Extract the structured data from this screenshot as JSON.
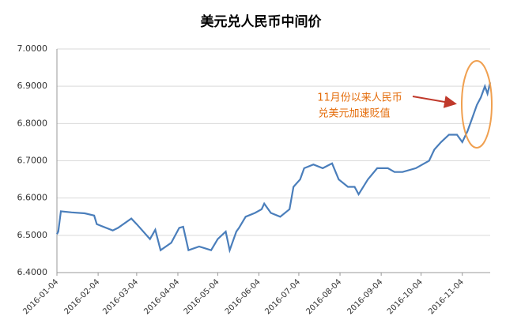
{
  "chart_data": {
    "type": "line",
    "title": "美元兑人民币中间价",
    "annotation": [
      "11月份以来人民币",
      "兑美元加速贬值"
    ],
    "x": [
      "2016-01-04",
      "2016-01-05",
      "2016-01-07",
      "2016-01-15",
      "2016-01-25",
      "2016-02-01",
      "2016-02-03",
      "2016-02-15",
      "2016-02-19",
      "2016-02-29",
      "2016-03-04",
      "2016-03-14",
      "2016-03-18",
      "2016-03-22",
      "2016-03-30",
      "2016-04-05",
      "2016-04-08",
      "2016-04-12",
      "2016-04-20",
      "2016-04-29",
      "2016-05-04",
      "2016-05-10",
      "2016-05-13",
      "2016-05-18",
      "2016-05-20",
      "2016-05-25",
      "2016-06-01",
      "2016-06-06",
      "2016-06-08",
      "2016-06-13",
      "2016-06-20",
      "2016-06-27",
      "2016-06-30",
      "2016-07-05",
      "2016-07-08",
      "2016-07-15",
      "2016-07-22",
      "2016-07-29",
      "2016-08-03",
      "2016-08-10",
      "2016-08-15",
      "2016-08-18",
      "2016-08-25",
      "2016-09-01",
      "2016-09-05",
      "2016-09-09",
      "2016-09-14",
      "2016-09-20",
      "2016-09-30",
      "2016-10-10",
      "2016-10-14",
      "2016-10-19",
      "2016-10-25",
      "2016-10-31",
      "2016-11-04",
      "2016-11-08",
      "2016-11-11",
      "2016-11-15",
      "2016-11-18",
      "2016-11-21",
      "2016-11-23",
      "2016-11-25"
    ],
    "series": [
      {
        "name": "美元兑人民币中间价",
        "color": "#4a7ebb",
        "values": [
          6.5032,
          6.51,
          6.5646,
          6.5616,
          6.559,
          6.553,
          6.53,
          6.513,
          6.52,
          6.545,
          6.53,
          6.49,
          6.515,
          6.46,
          6.48,
          6.52,
          6.523,
          6.46,
          6.47,
          6.46,
          6.49,
          6.51,
          6.46,
          6.51,
          6.52,
          6.55,
          6.56,
          6.57,
          6.585,
          6.56,
          6.55,
          6.57,
          6.63,
          6.65,
          6.68,
          6.69,
          6.68,
          6.693,
          6.65,
          6.63,
          6.63,
          6.61,
          6.65,
          6.68,
          6.68,
          6.68,
          6.67,
          6.67,
          6.68,
          6.7,
          6.73,
          6.75,
          6.77,
          6.77,
          6.75,
          6.78,
          6.81,
          6.85,
          6.87,
          6.9,
          6.88,
          6.91
        ]
      }
    ],
    "xlim": [
      "2016-01-04",
      "2016-11-25"
    ],
    "xticks": [
      "2016-01-04",
      "2016-02-04",
      "2016-03-04",
      "2016-04-04",
      "2016-05-04",
      "2016-06-04",
      "2016-07-04",
      "2016-08-04",
      "2016-09-04",
      "2016-10-04",
      "2016-11-04"
    ],
    "ylim": [
      6.4,
      7.0
    ],
    "yticks": [
      {
        "value": 6.4,
        "label": "6.4000"
      },
      {
        "value": 6.5,
        "label": "6.5000"
      },
      {
        "value": 6.6,
        "label": "6.6000"
      },
      {
        "value": 6.7,
        "label": "6.7000"
      },
      {
        "value": 6.8,
        "label": "6.8000"
      },
      {
        "value": 6.9,
        "label": "6.9000"
      },
      {
        "value": 7.0,
        "label": "7.0000"
      }
    ],
    "grid": true
  }
}
